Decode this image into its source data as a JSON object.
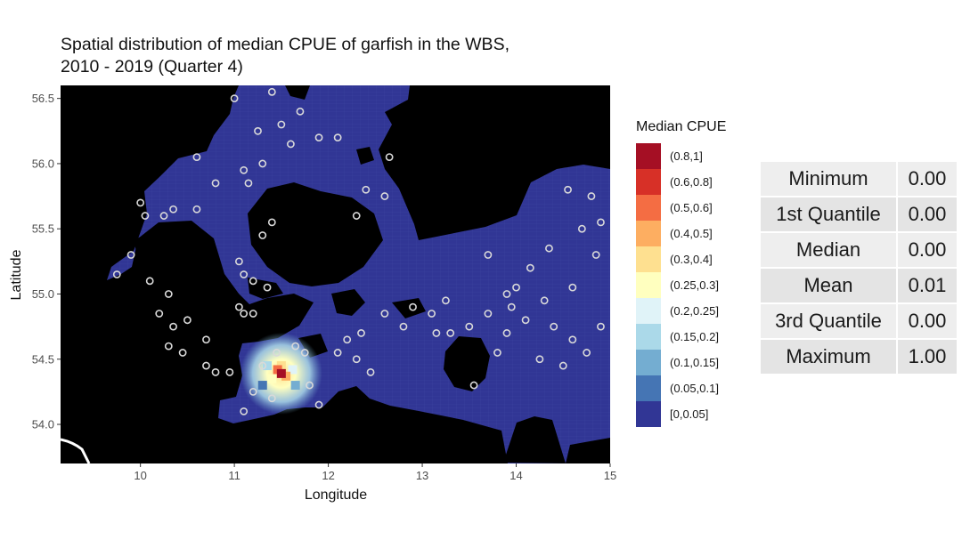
{
  "title_lines": [
    "Spatial distribution of median CPUE of garfish in the WBS,",
    "2010 - 2019 (Quarter 4)"
  ],
  "legend": {
    "title": "Median CPUE",
    "items": [
      {
        "label": "(0.8,1]",
        "color": "#a50f24"
      },
      {
        "label": "(0.6,0.8]",
        "color": "#d73027"
      },
      {
        "label": "(0.5,0.6]",
        "color": "#f46d43"
      },
      {
        "label": "(0.4,0.5]",
        "color": "#fdae61"
      },
      {
        "label": "(0.3,0.4]",
        "color": "#fee090"
      },
      {
        "label": "(0.25,0.3]",
        "color": "#ffffbf"
      },
      {
        "label": "(0.2,0.25]",
        "color": "#e0f3f8"
      },
      {
        "label": "(0.15,0.2]",
        "color": "#abd9e9"
      },
      {
        "label": "(0.1,0.15]",
        "color": "#74add1"
      },
      {
        "label": "(0.05,0.1]",
        "color": "#4575b4"
      },
      {
        "label": "[0,0.05]",
        "color": "#313695"
      }
    ]
  },
  "stats": [
    {
      "name": "Minimum",
      "value": "0.00"
    },
    {
      "name": "1st Quantile",
      "value": "0.00"
    },
    {
      "name": "Median",
      "value": "0.00"
    },
    {
      "name": "Mean",
      "value": "0.01"
    },
    {
      "name": "3rd Quantile",
      "value": "0.00"
    },
    {
      "name": "Maximum",
      "value": "1.00"
    }
  ],
  "chart_data": {
    "type": "heatmap",
    "title": "Spatial distribution of median CPUE of garfish in the WBS, 2010 - 2019 (Quarter 4)",
    "xlabel": "Longitude",
    "ylabel": "Latitude",
    "xlim": [
      9.15,
      15.0
    ],
    "ylim": [
      53.7,
      56.6
    ],
    "xticks": [
      10,
      11,
      12,
      13,
      14,
      15
    ],
    "yticks": [
      54.0,
      54.5,
      55.0,
      55.5,
      56.0,
      56.5
    ],
    "ytick_labels": [
      "54.0",
      "54.5",
      "55.0",
      "55.5",
      "56.0",
      "56.5"
    ],
    "background_cpue_class": "[0,0.05]",
    "hotspot": {
      "lon": 11.5,
      "lat": 54.39,
      "peak_class": "(0.8,1]"
    },
    "hotspot_classes": [
      {
        "lon": 11.5,
        "lat": 54.39,
        "class": "(0.8,1]"
      },
      {
        "lon": 11.46,
        "lat": 54.42,
        "class": "(0.5,0.6]"
      },
      {
        "lon": 11.55,
        "lat": 54.37,
        "class": "(0.4,0.5]"
      },
      {
        "lon": 11.5,
        "lat": 54.45,
        "class": "(0.3,0.4]"
      },
      {
        "lon": 11.4,
        "lat": 54.35,
        "class": "(0.25,0.3]"
      },
      {
        "lon": 11.62,
        "lat": 54.42,
        "class": "(0.2,0.25]"
      },
      {
        "lon": 11.35,
        "lat": 54.45,
        "class": "(0.15,0.2]"
      },
      {
        "lon": 11.65,
        "lat": 54.3,
        "class": "(0.1,0.15]"
      },
      {
        "lon": 11.3,
        "lat": 54.3,
        "class": "(0.05,0.1]"
      }
    ],
    "haul_points_lon_lat": [
      [
        11.0,
        56.5
      ],
      [
        11.4,
        56.55
      ],
      [
        11.7,
        56.4
      ],
      [
        11.5,
        56.3
      ],
      [
        11.25,
        56.25
      ],
      [
        11.6,
        56.15
      ],
      [
        11.9,
        56.2
      ],
      [
        12.1,
        56.2
      ],
      [
        11.3,
        56.0
      ],
      [
        11.1,
        55.95
      ],
      [
        11.15,
        55.85
      ],
      [
        10.8,
        55.85
      ],
      [
        10.6,
        56.05
      ],
      [
        10.35,
        55.65
      ],
      [
        10.05,
        55.6
      ],
      [
        10.25,
        55.6
      ],
      [
        10.6,
        55.65
      ],
      [
        9.9,
        55.3
      ],
      [
        9.75,
        55.15
      ],
      [
        10.1,
        55.1
      ],
      [
        10.3,
        55.0
      ],
      [
        10.2,
        54.85
      ],
      [
        10.35,
        54.75
      ],
      [
        10.5,
        54.8
      ],
      [
        10.3,
        54.6
      ],
      [
        10.45,
        54.55
      ],
      [
        10.7,
        54.65
      ],
      [
        10.7,
        54.45
      ],
      [
        10.8,
        54.4
      ],
      [
        10.95,
        54.4
      ],
      [
        11.05,
        55.25
      ],
      [
        11.1,
        55.15
      ],
      [
        11.2,
        55.1
      ],
      [
        11.05,
        54.9
      ],
      [
        11.2,
        54.85
      ],
      [
        11.3,
        55.45
      ],
      [
        11.4,
        55.55
      ],
      [
        11.35,
        55.05
      ],
      [
        11.1,
        54.85
      ],
      [
        11.3,
        54.45
      ],
      [
        11.45,
        54.55
      ],
      [
        11.65,
        54.6
      ],
      [
        11.75,
        54.55
      ],
      [
        11.2,
        54.25
      ],
      [
        11.4,
        54.2
      ],
      [
        11.1,
        54.1
      ],
      [
        11.8,
        54.3
      ],
      [
        11.9,
        54.15
      ],
      [
        12.1,
        54.55
      ],
      [
        12.2,
        54.65
      ],
      [
        12.35,
        54.7
      ],
      [
        12.3,
        54.5
      ],
      [
        12.6,
        54.85
      ],
      [
        12.9,
        54.9
      ],
      [
        13.1,
        54.85
      ],
      [
        13.3,
        54.7
      ],
      [
        13.5,
        54.75
      ],
      [
        13.7,
        54.85
      ],
      [
        13.9,
        55.0
      ],
      [
        14.0,
        55.05
      ],
      [
        14.15,
        55.2
      ],
      [
        14.3,
        54.95
      ],
      [
        14.4,
        54.75
      ],
      [
        14.6,
        54.65
      ],
      [
        14.75,
        54.55
      ],
      [
        14.9,
        54.75
      ],
      [
        13.9,
        54.7
      ],
      [
        14.1,
        54.8
      ],
      [
        13.55,
        54.3
      ],
      [
        14.5,
        54.45
      ],
      [
        14.6,
        55.05
      ],
      [
        14.9,
        55.55
      ],
      [
        14.8,
        55.75
      ],
      [
        14.55,
        55.8
      ],
      [
        14.7,
        55.5
      ],
      [
        12.3,
        55.6
      ],
      [
        12.4,
        55.8
      ],
      [
        12.65,
        56.05
      ],
      [
        12.6,
        55.75
      ],
      [
        10.0,
        55.7
      ],
      [
        13.8,
        54.55
      ],
      [
        12.8,
        54.75
      ],
      [
        13.15,
        54.7
      ],
      [
        12.45,
        54.4
      ],
      [
        13.25,
        54.95
      ],
      [
        13.95,
        54.9
      ],
      [
        14.25,
        54.5
      ],
      [
        13.7,
        55.3
      ],
      [
        14.35,
        55.35
      ],
      [
        14.85,
        55.3
      ]
    ]
  }
}
